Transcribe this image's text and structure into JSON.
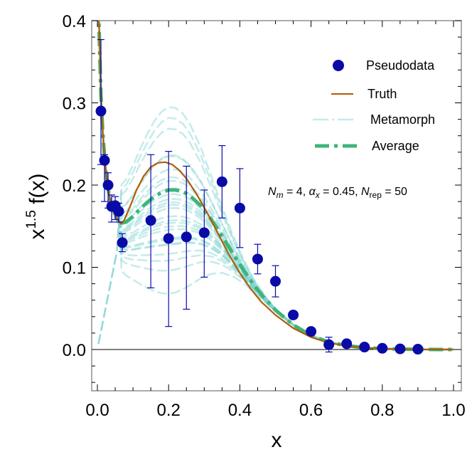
{
  "chart_data": {
    "type": "scatter",
    "title": "",
    "xlabel": "x",
    "ylabel_base": "x",
    "ylabel_exp": "1.5",
    "ylabel_rest": " f(x)",
    "xlim": [
      0.0,
      1.0
    ],
    "ylim": [
      -0.05,
      0.4
    ],
    "x_ticks": [
      0.0,
      0.2,
      0.4,
      0.6,
      0.8,
      1.0
    ],
    "x_tick_labels": [
      "0.0",
      "0.2",
      "0.4",
      "0.6",
      "0.8",
      "1.0"
    ],
    "y_ticks": [
      0.0,
      0.1,
      0.2,
      0.3,
      0.4
    ],
    "y_tick_labels": [
      "0.0",
      "0.1",
      "0.2",
      "0.3",
      "0.4"
    ],
    "x_minor_step": 0.05,
    "y_minor_step": 0.02,
    "zero_line": true,
    "grid": false,
    "legend_position": "top-right",
    "legend": [
      {
        "key": "pseudodata",
        "label": "Pseudodata",
        "style": "marker"
      },
      {
        "key": "truth",
        "label": "Truth",
        "style": "solid"
      },
      {
        "key": "metamorph",
        "label": "Metamorph",
        "style": "dashed-light"
      },
      {
        "key": "average",
        "label": "Average",
        "style": "dashed-thick"
      }
    ],
    "annotation": {
      "parts": [
        {
          "t": "N",
          "italic": true
        },
        {
          "t": "m",
          "italic": true,
          "sub": true
        },
        {
          "t": " = 4, "
        },
        {
          "t": "α",
          "italic": true
        },
        {
          "t": "x",
          "italic": true,
          "sub": true
        },
        {
          "t": " = 0.45, "
        },
        {
          "t": "N",
          "italic": true
        },
        {
          "t": "rep",
          "sub": true
        },
        {
          "t": " = 50"
        }
      ]
    },
    "colors": {
      "pseudodata": "#0a0aa8",
      "truth": "#b35c06",
      "metamorph": "#7fd3d0",
      "average": "#3db57a",
      "zero_line": "#000000",
      "frame": "#808080"
    },
    "pseudodata": {
      "x": [
        0.01,
        0.02,
        0.03,
        0.04,
        0.05,
        0.06,
        0.07,
        0.15,
        0.2,
        0.25,
        0.3,
        0.35,
        0.4,
        0.45,
        0.5,
        0.55,
        0.6,
        0.65,
        0.7,
        0.75,
        0.8,
        0.85,
        0.9
      ],
      "y": [
        0.29,
        0.23,
        0.2,
        0.174,
        0.175,
        0.168,
        0.13,
        0.157,
        0.135,
        0.137,
        0.142,
        0.204,
        0.172,
        0.11,
        0.083,
        0.042,
        0.022,
        0.006,
        0.007,
        0.003,
        0.0015,
        0.0008,
        0.0004
      ],
      "y_low": [
        0.225,
        0.18,
        0.172,
        0.155,
        0.158,
        0.155,
        0.119,
        0.075,
        0.028,
        0.049,
        0.088,
        0.16,
        0.124,
        0.092,
        0.064,
        0.038,
        0.019,
        -0.003,
        0.004,
        0.001,
        0.0005,
        0.0002,
        0.0001
      ],
      "y_high": [
        0.377,
        0.237,
        0.215,
        0.188,
        0.186,
        0.178,
        0.141,
        0.237,
        0.241,
        0.223,
        0.194,
        0.248,
        0.22,
        0.128,
        0.102,
        0.046,
        0.025,
        0.015,
        0.01,
        0.005,
        0.0025,
        0.0014,
        0.0007
      ]
    },
    "truth_curve": {
      "x": [
        0.003,
        0.006,
        0.01,
        0.015,
        0.02,
        0.025,
        0.03,
        0.035,
        0.04,
        0.045,
        0.05,
        0.055,
        0.06,
        0.066,
        0.075,
        0.09,
        0.11,
        0.13,
        0.15,
        0.17,
        0.19,
        0.21,
        0.23,
        0.25,
        0.28,
        0.31,
        0.34,
        0.37,
        0.4,
        0.43,
        0.46,
        0.5,
        0.55,
        0.6,
        0.65,
        0.7,
        0.75,
        0.8,
        0.85,
        0.9,
        0.95,
        1.0
      ],
      "y": [
        0.42,
        0.38,
        0.31,
        0.265,
        0.235,
        0.212,
        0.195,
        0.183,
        0.175,
        0.168,
        0.163,
        0.159,
        0.156,
        0.153,
        0.157,
        0.172,
        0.194,
        0.211,
        0.222,
        0.227,
        0.228,
        0.225,
        0.218,
        0.208,
        0.188,
        0.165,
        0.14,
        0.115,
        0.093,
        0.074,
        0.058,
        0.042,
        0.026,
        0.015,
        0.008,
        0.0045,
        0.0022,
        0.001,
        0.0004,
        0.00015,
        3e-05,
        0.0
      ]
    },
    "average_curve": {
      "x": [
        0.003,
        0.006,
        0.01,
        0.015,
        0.02,
        0.025,
        0.03,
        0.035,
        0.04,
        0.045,
        0.05,
        0.055,
        0.06,
        0.068,
        0.08,
        0.1,
        0.12,
        0.14,
        0.16,
        0.18,
        0.2,
        0.22,
        0.24,
        0.26,
        0.29,
        0.32,
        0.35,
        0.38,
        0.41,
        0.44,
        0.47,
        0.5,
        0.55,
        0.6,
        0.65,
        0.7,
        0.75,
        0.8,
        0.85,
        0.9,
        0.95,
        1.0
      ],
      "y": [
        0.42,
        0.37,
        0.31,
        0.265,
        0.235,
        0.212,
        0.196,
        0.184,
        0.175,
        0.168,
        0.163,
        0.159,
        0.156,
        0.154,
        0.155,
        0.162,
        0.171,
        0.179,
        0.186,
        0.191,
        0.194,
        0.194,
        0.192,
        0.187,
        0.175,
        0.158,
        0.138,
        0.117,
        0.097,
        0.078,
        0.062,
        0.048,
        0.03,
        0.017,
        0.009,
        0.0047,
        0.0022,
        0.001,
        0.0004,
        0.00015,
        4e-05,
        0.0
      ]
    },
    "metamorph_scales": [
      1.42,
      1.36,
      1.28,
      1.2,
      1.14,
      1.1,
      1.06,
      1.03,
      1.0,
      0.98,
      0.96,
      0.94,
      0.92,
      0.9,
      0.88,
      0.86,
      0.84,
      0.82,
      0.8,
      0.78,
      0.76,
      0.74,
      0.72,
      0.7,
      0.66,
      0.6,
      0.5
    ],
    "metamorph_shifts": [
      -0.005,
      -0.003,
      0.004,
      -0.008,
      0.006,
      0.0,
      -0.004,
      0.008,
      0.002,
      -0.006,
      0.005,
      0.0,
      -0.002,
      0.007,
      -0.007,
      0.003,
      0.0,
      -0.003,
      0.006,
      -0.005,
      0.002,
      0.0,
      0.004,
      -0.002,
      0.0,
      0.003,
      0.0
    ],
    "metamorph_low_x_drops": [
      0,
      0,
      0,
      0,
      0,
      0,
      0,
      0,
      0,
      0,
      0,
      0,
      0,
      0,
      0,
      0,
      0,
      0,
      0,
      0,
      0,
      0,
      0,
      0,
      1,
      1,
      1
    ]
  }
}
